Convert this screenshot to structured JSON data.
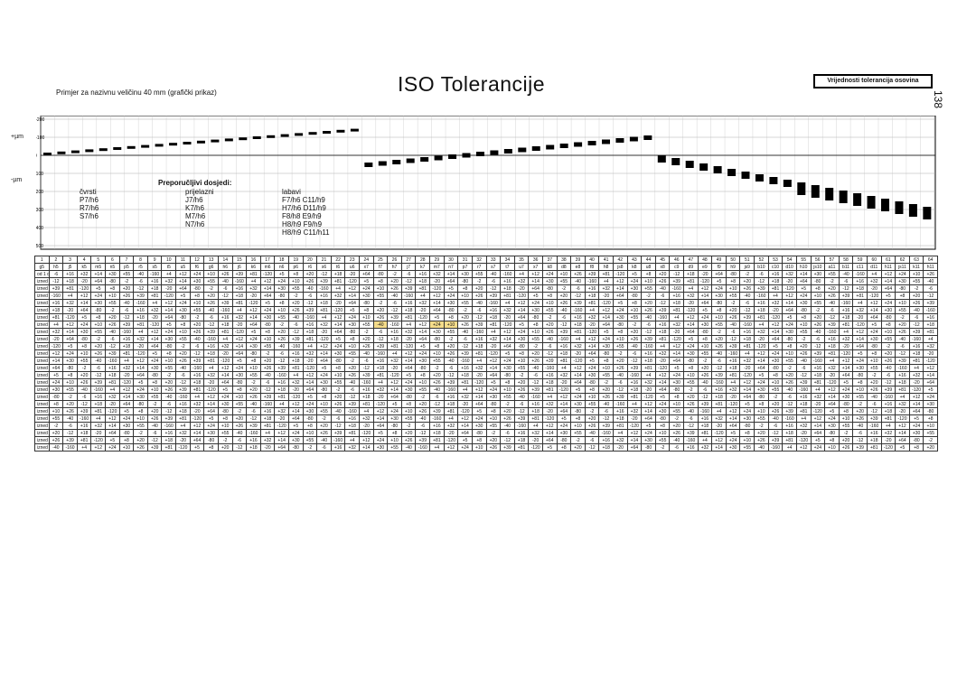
{
  "header": {
    "title": "ISO Tolerancije",
    "subtitle": "Primjer za nazivnu veličinu 40 mm  (grafički prikaz)",
    "ref_label": "Vrijednosti tolerancija osovina",
    "page_number": "138"
  },
  "chart_axis": {
    "unit_top": "+µm",
    "unit_bottom": "-µm",
    "ticks": [
      "+200",
      "+100",
      "0",
      "-100",
      "-200",
      "-300",
      "-400",
      "-500"
    ]
  },
  "legend": {
    "title": "Preporučljivi dosjedi:",
    "columns": [
      {
        "heading": "čvrsti",
        "items": [
          "P7/h6",
          "R7/h6",
          "S7/h6"
        ]
      },
      {
        "heading": "prijelazni",
        "items": [
          "J7/h6",
          "K7/h6",
          "M7/h6",
          "N7/h6"
        ]
      },
      {
        "heading": "labavi",
        "items": [
          "F7/h6  C11/h9",
          "H7/h6  D11/h9",
          "F8/h8  E9/h9",
          "H8/h9  F9/h9",
          "H8/h9  C11/h11"
        ]
      }
    ]
  },
  "table": {
    "col_numbers": [
      "1",
      "2",
      "3",
      "4",
      "5",
      "6",
      "7",
      "8",
      "9",
      "10",
      "11",
      "12",
      "13",
      "14",
      "15",
      "16",
      "17",
      "18",
      "19",
      "20",
      "21",
      "22",
      "23",
      "24",
      "25",
      "26",
      "27",
      "28",
      "29",
      "30",
      "31",
      "32",
      "33",
      "34",
      "35",
      "36",
      "37",
      "38",
      "39",
      "40",
      "41",
      "42",
      "43",
      "44",
      "45",
      "46",
      "47",
      "48",
      "49",
      "50",
      "51",
      "52",
      "53",
      "54",
      "55",
      "56",
      "57",
      "58",
      "59",
      "60",
      "61",
      "62",
      "63",
      "64"
    ],
    "group_labels": [
      "5",
      "6",
      "7",
      "8",
      "9",
      "10",
      "11"
    ],
    "sub_headers": [
      "g5",
      "h5",
      "j5",
      "k5",
      "m5",
      "n5",
      "p5",
      "r5",
      "s5",
      "t5",
      "u5",
      "f6",
      "g6",
      "h6",
      "j6",
      "k6",
      "m6",
      "n6",
      "p6",
      "r6",
      "s6",
      "t6",
      "u6",
      "x7",
      "f7",
      "h7",
      "j7",
      "k7",
      "m7",
      "n7",
      "p7",
      "r7",
      "s7",
      "t7",
      "u7",
      "x7",
      "k8",
      "d8",
      "e8",
      "f8",
      "h8",
      "js8",
      "k8",
      "u8",
      "x8",
      "c9",
      "d9",
      "e9",
      "f9",
      "h9",
      "js9",
      "b10",
      "c10",
      "d10",
      "h10",
      "js10",
      "a11",
      "b11",
      "c11",
      "d11",
      "h11",
      "js11",
      "k11",
      "h11"
    ],
    "row_labels": [
      "od 1 do 3",
      "izned 3 do 6",
      "izned 6 do 10",
      "izned 10 do 14",
      "izned 14 do 18",
      "izned 18 do 24",
      "izned 24 do 30",
      "izned 30 do 40",
      "izned 40 do 50",
      "izned 50 do 65",
      "izned 65 do 80",
      "izned 80 do 100",
      "izned 100 do 120",
      "izned 120 do 140",
      "izned 140 do 160",
      "izned 160 do 180",
      "izned 180 do 200",
      "izned 200 do 225",
      "izned 225 do 250",
      "izned 250 do 280",
      "izned 280 do 315",
      "izned 315 do 355",
      "izned 355 do 400",
      "izned 400 do 450",
      "izned 450 do 500"
    ],
    "sample_values": [
      "-2",
      "+5",
      "+4",
      "-6",
      "+8",
      "+12",
      "+16",
      "+20",
      "+24",
      "+32",
      "-12",
      "+10",
      "+14",
      "+18",
      "+26",
      "+30",
      "-20",
      "+39",
      "+55",
      "+64",
      "+81",
      "-40",
      "-80",
      "-120",
      "-160"
    ]
  }
}
